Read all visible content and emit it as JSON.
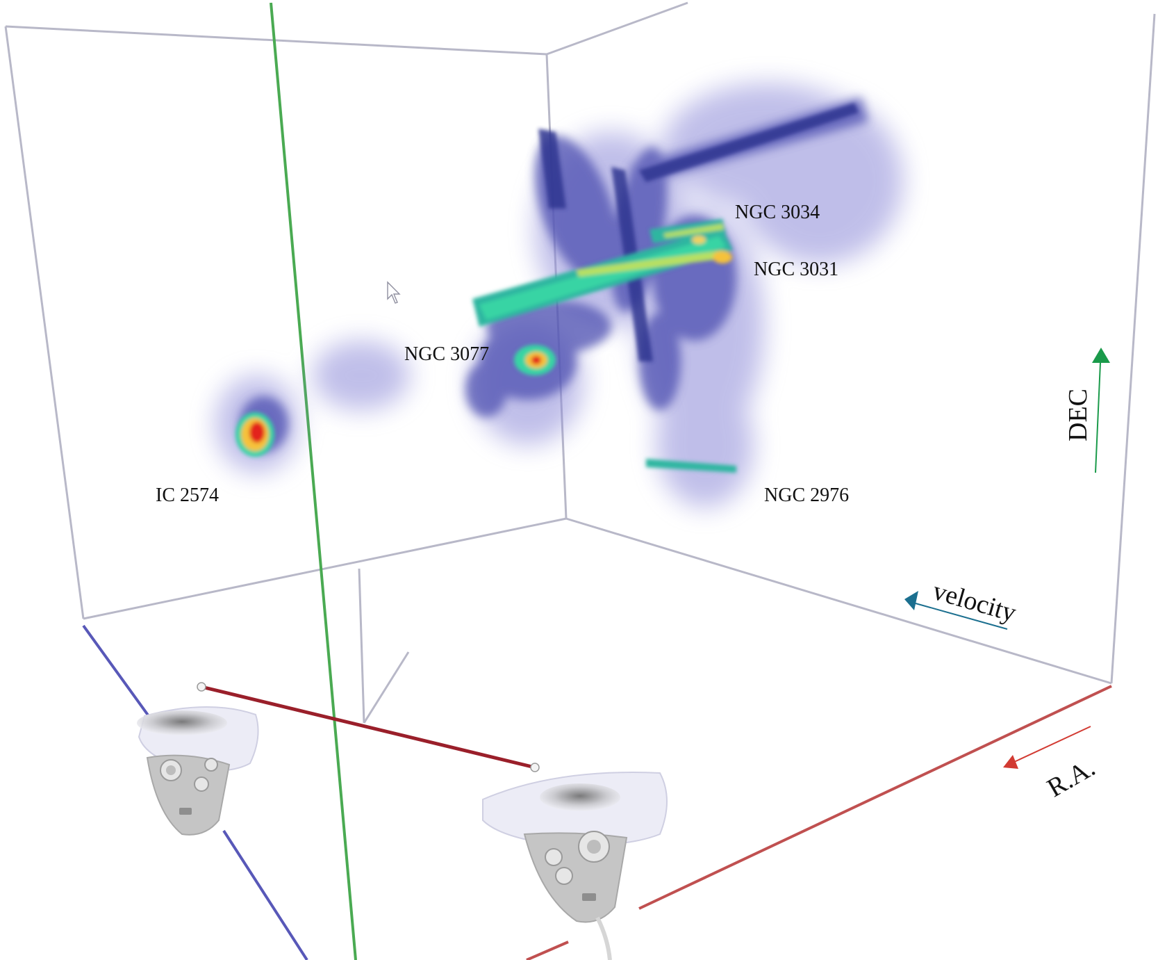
{
  "galaxies": [
    {
      "id": "ngc3034",
      "label": "NGC 3034"
    },
    {
      "id": "ngc3031",
      "label": "NGC 3031"
    },
    {
      "id": "ngc3077",
      "label": "NGC 3077"
    },
    {
      "id": "ic2574",
      "label": "IC 2574"
    },
    {
      "id": "ngc2976",
      "label": "NGC 2976"
    }
  ],
  "axes": {
    "dec": {
      "label": "DEC",
      "color": "#1a9a4a"
    },
    "velocity": {
      "label": "velocity",
      "color": "#1b6f8f"
    },
    "ra": {
      "label": "R.A.",
      "color": "#d23a32"
    }
  },
  "colors": {
    "cube_edge": "#b8b8c8",
    "green_axis": "#4aaa52",
    "blue_axis": "#5858b8",
    "red_axis": "#c05050",
    "laser": "#9a1f2a",
    "emission_faint": "#8c8ad8",
    "emission_mid": "#3a3f9a",
    "emission_high": "#37d4a4",
    "emission_peak": "#e3221c"
  },
  "icons": [
    "left-vr-controller-icon",
    "right-vr-controller-icon",
    "mouse-cursor-icon"
  ]
}
